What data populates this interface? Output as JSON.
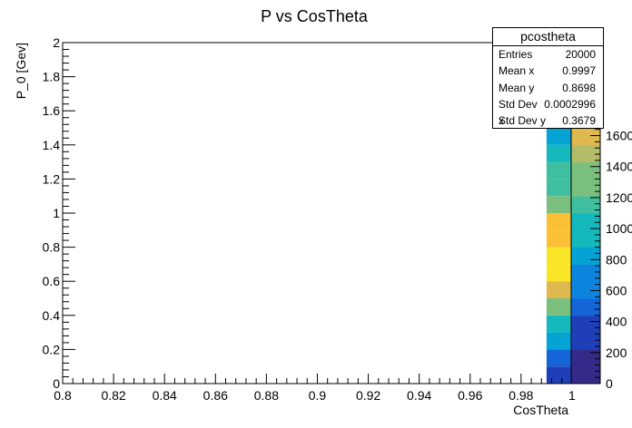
{
  "chart_data": {
    "type": "heatmap",
    "title": "P vs CosTheta",
    "xlabel": "CosTheta",
    "ylabel": "P_0 [Gev]",
    "xlim": [
      0.8,
      1.01
    ],
    "ylim": [
      0,
      2
    ],
    "x_ticks": [
      "0.8",
      "0.82",
      "0.84",
      "0.86",
      "0.88",
      "0.9",
      "0.92",
      "0.94",
      "0.96",
      "0.98",
      "1"
    ],
    "y_ticks": [
      "0",
      "0.2",
      "0.4",
      "0.6",
      "0.8",
      "1",
      "1.2",
      "1.4",
      "1.6",
      "1.8",
      "2"
    ],
    "z_ticks": [
      "0",
      "200",
      "400",
      "600",
      "800",
      "1000",
      "1200",
      "1400",
      "1600"
    ],
    "zlim": [
      0,
      2200
    ],
    "x_bin": [
      0.99,
      1.0
    ],
    "y_bins": [
      {
        "y0": 0.0,
        "y1": 0.1,
        "value": 250
      },
      {
        "y0": 0.1,
        "y1": 0.2,
        "value": 400
      },
      {
        "y0": 0.2,
        "y1": 0.3,
        "value": 700
      },
      {
        "y0": 0.3,
        "y1": 0.4,
        "value": 1000
      },
      {
        "y0": 0.4,
        "y1": 0.5,
        "value": 1350
      },
      {
        "y0": 0.5,
        "y1": 0.6,
        "value": 1650
      },
      {
        "y0": 0.6,
        "y1": 0.7,
        "value": 1950
      },
      {
        "y0": 0.7,
        "y1": 0.8,
        "value": 2000
      },
      {
        "y0": 0.8,
        "y1": 0.9,
        "value": 1850
      },
      {
        "y0": 0.9,
        "y1": 1.0,
        "value": 1700
      },
      {
        "y0": 1.0,
        "y1": 1.1,
        "value": 1300
      },
      {
        "y0": 1.1,
        "y1": 1.2,
        "value": 1150
      },
      {
        "y0": 1.2,
        "y1": 1.3,
        "value": 1050
      },
      {
        "y0": 1.3,
        "y1": 1.4,
        "value": 950
      },
      {
        "y0": 1.4,
        "y1": 1.5,
        "value": 750
      },
      {
        "y0": 1.5,
        "y1": 1.6,
        "value": 650
      }
    ],
    "palette": [
      "#352a87",
      "#1f3fb8",
      "#1565d9",
      "#0d85de",
      "#05a3d4",
      "#15b8bc",
      "#3fbf9f",
      "#7bbf7f",
      "#b3bd68",
      "#dfb94d",
      "#fbc036",
      "#f9e626",
      "#f9fb0e"
    ],
    "stats": {
      "name": "pcostheta",
      "rows": [
        {
          "label": "Entries",
          "value": "20000"
        },
        {
          "label": "Mean x",
          "value": "0.9997"
        },
        {
          "label": "Mean y",
          "value": "0.8698"
        },
        {
          "label": "Std Dev x",
          "value": "0.0002996"
        },
        {
          "label": "Std Dev y",
          "value": "0.3679"
        }
      ]
    }
  }
}
